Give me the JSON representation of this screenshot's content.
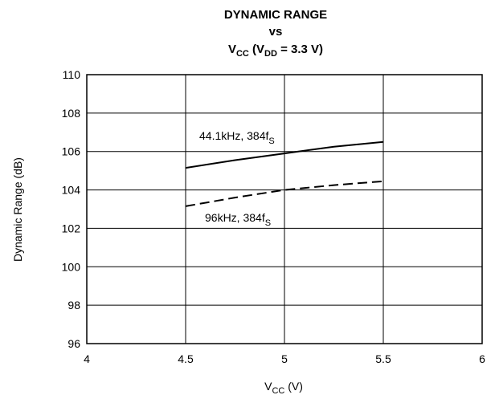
{
  "chart_data": {
    "type": "line",
    "title": {
      "line1": "DYNAMIC RANGE",
      "line2": "vs",
      "line3_pre": "V",
      "line3_sub1": "CC",
      "line3_mid": " (V",
      "line3_sub2": "DD",
      "line3_post": " = 3.3 V)"
    },
    "xlabel": {
      "main": "V",
      "sub": "CC",
      "rest": " (V)"
    },
    "ylabel": "Dynamic Range (dB)",
    "xlim": [
      4,
      6
    ],
    "ylim": [
      96,
      110
    ],
    "xticks": [
      "4",
      "4.5",
      "5",
      "5.5",
      "6"
    ],
    "yticks": [
      "96",
      "98",
      "100",
      "102",
      "104",
      "106",
      "108",
      "110"
    ],
    "grid": true,
    "series": [
      {
        "name": {
          "main": "44.1kHz, 384f",
          "sub": "S"
        },
        "style": "solid",
        "x": [
          4.5,
          4.75,
          5.0,
          5.25,
          5.5
        ],
        "y": [
          105.15,
          105.55,
          105.9,
          106.25,
          106.5
        ]
      },
      {
        "name": {
          "main": "96kHz, 384f",
          "sub": "S"
        },
        "style": "dashed",
        "x": [
          4.5,
          4.75,
          5.0,
          5.25,
          5.5
        ],
        "y": [
          103.15,
          103.6,
          104.0,
          104.25,
          104.45
        ]
      }
    ]
  }
}
